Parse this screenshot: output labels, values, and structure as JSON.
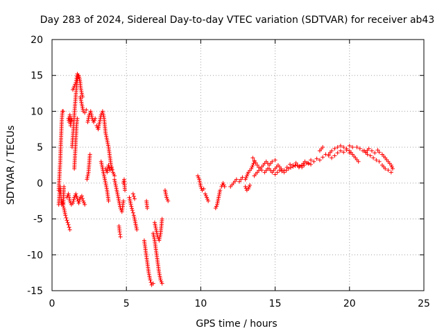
{
  "chart_data": {
    "type": "scatter",
    "title": "Day 283 of 2024, Sidereal Day-to-day VTEC variation (SDTVAR) for receiver ab43",
    "xlabel": "GPS time / hours",
    "ylabel": "SDTVAR / TECUs",
    "xlim": [
      0,
      25
    ],
    "ylim": [
      -15,
      20
    ],
    "xticks": [
      0,
      5,
      10,
      15,
      20,
      25
    ],
    "yticks": [
      -15,
      -10,
      -5,
      0,
      5,
      10,
      15,
      20
    ],
    "grid": true,
    "marker": "plus",
    "color": "#ff0000",
    "series": [
      {
        "name": "SDTVAR",
        "segments": [
          {
            "x": [
              0.45,
              0.55,
              0.6,
              0.65,
              0.7,
              0.75
            ],
            "y": [
              -1,
              3,
              6,
              8.5,
              10,
              10
            ]
          },
          {
            "x": [
              0.45,
              0.5,
              0.55,
              0.6,
              0.65,
              0.7,
              0.75,
              0.8
            ],
            "y": [
              -3,
              -1.5,
              -0.5,
              -2,
              -3,
              -2.5,
              -3.2,
              -0.5
            ]
          },
          {
            "x": [
              0.8,
              0.9,
              1.0,
              1.1,
              1.2
            ],
            "y": [
              -3.5,
              -4.5,
              -5.2,
              -5.8,
              -6.5
            ]
          },
          {
            "x": [
              1.0,
              1.1,
              1.2,
              1.3,
              1.4,
              1.5
            ],
            "y": [
              -2,
              -1.5,
              -2.5,
              -3,
              -2.8,
              -2
            ]
          },
          {
            "x": [
              1.1,
              1.15,
              1.2,
              1.25,
              1.3,
              1.35
            ],
            "y": [
              9,
              8.5,
              9.5,
              8,
              9,
              8.7
            ]
          },
          {
            "x": [
              1.35,
              1.45,
              1.55,
              1.65,
              1.75,
              1.85,
              1.95,
              2.05
            ],
            "y": [
              5,
              8,
              11,
              13.5,
              15,
              14.5,
              13,
              12
            ]
          },
          {
            "x": [
              1.4,
              1.5,
              1.6,
              1.7,
              1.8,
              1.9
            ],
            "y": [
              13,
              13.5,
              14,
              15.2,
              15,
              14
            ]
          },
          {
            "x": [
              1.5,
              1.55,
              1.6,
              1.65,
              1.7
            ],
            "y": [
              2,
              4,
              6,
              8,
              9
            ]
          },
          {
            "x": [
              1.5,
              1.6,
              1.7,
              1.8,
              1.9,
              2.0,
              2.1,
              2.2
            ],
            "y": [
              -2,
              -1.5,
              -2.2,
              -2.8,
              -2,
              -1.8,
              -2.5,
              -3
            ]
          },
          {
            "x": [
              1.9,
              2.0,
              2.1,
              2.2,
              2.3
            ],
            "y": [
              12,
              11,
              10,
              9.8,
              10.2
            ]
          },
          {
            "x": [
              2.4,
              2.5,
              2.6,
              2.7,
              2.8,
              2.9
            ],
            "y": [
              8.5,
              9.5,
              10,
              9,
              8.5,
              9
            ]
          },
          {
            "x": [
              2.35,
              2.45,
              2.55
            ],
            "y": [
              0.5,
              1.5,
              4
            ]
          },
          {
            "x": [
              3.0,
              3.1,
              3.2,
              3.3,
              3.4,
              3.5,
              3.6,
              3.7,
              3.8,
              3.9,
              4.0
            ],
            "y": [
              8,
              7.5,
              8.5,
              9.5,
              10,
              9,
              7,
              6,
              5,
              3.5,
              2
            ]
          },
          {
            "x": [
              3.3,
              3.4,
              3.5,
              3.6,
              3.7,
              3.8
            ],
            "y": [
              3,
              2,
              1,
              0,
              -1,
              -2.5
            ]
          },
          {
            "x": [
              3.6,
              3.7,
              3.8,
              3.9,
              4.0,
              4.1,
              4.2
            ],
            "y": [
              2,
              1.5,
              2.5,
              1.8,
              2.2,
              1.5,
              1
            ]
          },
          {
            "x": [
              4.2,
              4.3,
              4.4,
              4.5,
              4.6,
              4.7,
              4.8
            ],
            "y": [
              0.5,
              -0.5,
              -1.5,
              -2.5,
              -3.5,
              -4,
              -2.5
            ]
          },
          {
            "x": [
              4.5,
              4.55,
              4.6
            ],
            "y": [
              -6,
              -6.8,
              -7.5
            ]
          },
          {
            "x": [
              4.8,
              4.85,
              4.9
            ],
            "y": [
              0,
              0.5,
              -1
            ]
          },
          {
            "x": [
              5.2,
              5.3,
              5.4,
              5.5,
              5.6,
              5.7
            ],
            "y": [
              -2,
              -3,
              -3.8,
              -4.5,
              -5.5,
              -6.5
            ]
          },
          {
            "x": [
              5.45,
              5.55
            ],
            "y": [
              -1.5,
              -2.2
            ]
          },
          {
            "x": [
              6.2,
              6.3,
              6.4,
              6.5,
              6.6,
              6.7,
              6.8
            ],
            "y": [
              -8,
              -9.5,
              -11,
              -12.5,
              -13.5,
              -14.2,
              -14
            ]
          },
          {
            "x": [
              6.35,
              6.4
            ],
            "y": [
              -2.5,
              -3.5
            ]
          },
          {
            "x": [
              6.8,
              6.9,
              7.0,
              7.1,
              7.2,
              7.3,
              7.4
            ],
            "y": [
              -7,
              -8,
              -9.5,
              -11,
              -12.5,
              -13.5,
              -14
            ]
          },
          {
            "x": [
              6.9,
              7.0,
              7.1,
              7.2,
              7.3,
              7.4
            ],
            "y": [
              -5.5,
              -6.5,
              -7.5,
              -8,
              -7,
              -5
            ]
          },
          {
            "x": [
              7.6,
              7.7,
              7.8
            ],
            "y": [
              -1,
              -2,
              -2.5
            ]
          },
          {
            "x": [
              9.8,
              9.9,
              10.0,
              10.1,
              10.2
            ],
            "y": [
              1,
              0.5,
              -0.5,
              -1,
              -0.8
            ]
          },
          {
            "x": [
              10.3,
              10.4,
              10.5
            ],
            "y": [
              -1.5,
              -2,
              -2.5
            ]
          },
          {
            "x": [
              11.0,
              11.1,
              11.2,
              11.3
            ],
            "y": [
              -3.5,
              -3,
              -2,
              -1
            ]
          },
          {
            "x": [
              11.4,
              11.5,
              11.6
            ],
            "y": [
              -0.5,
              0,
              -0.5
            ]
          },
          {
            "x": [
              12.0,
              12.2,
              12.4,
              12.6,
              12.8,
              13.0,
              13.2,
              13.4,
              13.6
            ],
            "y": [
              -0.5,
              0,
              0.5,
              0.2,
              0.8,
              0.5,
              1.5,
              2,
              3
            ]
          },
          {
            "x": [
              13.0,
              13.1,
              13.2,
              13.3
            ],
            "y": [
              -0.5,
              -1,
              -0.8,
              -0.3
            ]
          },
          {
            "x": [
              13.6,
              13.8,
              14.0,
              14.2,
              14.4,
              14.6,
              14.8,
              15.0
            ],
            "y": [
              1,
              1.5,
              2,
              2.5,
              3,
              2.5,
              3,
              3.2
            ]
          },
          {
            "x": [
              13.5,
              13.7,
              13.9,
              14.1,
              14.3,
              14.5
            ],
            "y": [
              3.5,
              2.8,
              2.2,
              1.8,
              1.5,
              2
            ]
          },
          {
            "x": [
              14.6,
              14.8,
              15.0,
              15.2,
              15.4,
              15.6,
              15.8,
              16.0,
              16.2,
              16.4,
              16.6,
              16.8
            ],
            "y": [
              2,
              1.5,
              2,
              2.5,
              2,
              1.8,
              2.2,
              2.6,
              2.5,
              2.8,
              2.2,
              2.4
            ]
          },
          {
            "x": [
              15.0,
              15.3,
              15.6,
              15.9,
              16.2,
              16.5,
              16.8,
              17.1,
              17.4
            ],
            "y": [
              1.2,
              1.8,
              1.5,
              2,
              2.3,
              2.5,
              2.2,
              2.8,
              2.6
            ]
          },
          {
            "x": [
              16.8,
              17.0,
              17.2,
              17.4,
              17.6,
              17.8,
              18.0,
              18.2,
              18.4,
              18.6
            ],
            "y": [
              2.5,
              3,
              2.8,
              3.2,
              3,
              3.4,
              3.2,
              3.6,
              4,
              3.8
            ]
          },
          {
            "x": [
              18.0,
              18.2
            ],
            "y": [
              4.5,
              5
            ]
          },
          {
            "x": [
              18.6,
              18.8,
              19.0,
              19.2,
              19.4,
              19.6,
              19.8,
              20.0,
              20.2
            ],
            "y": [
              4,
              4.5,
              4.8,
              5,
              5.2,
              5,
              4.8,
              5.2,
              5
            ]
          },
          {
            "x": [
              18.8,
              19.0,
              19.2,
              19.4,
              19.6,
              19.8,
              20.0
            ],
            "y": [
              3.5,
              3.8,
              4.2,
              4.5,
              4.3,
              4.6,
              4.2
            ]
          },
          {
            "x": [
              20.0,
              20.2,
              20.4,
              20.6
            ],
            "y": [
              4.5,
              4,
              3.5,
              3
            ]
          },
          {
            "x": [
              20.5,
              20.7,
              20.9,
              21.1,
              21.3,
              21.5,
              21.7,
              21.9
            ],
            "y": [
              5,
              4.8,
              4.5,
              4.3,
              4.8,
              4.5,
              4.2,
              4.6
            ]
          },
          {
            "x": [
              21.0,
              21.2,
              21.4,
              21.6,
              21.8,
              22.0
            ],
            "y": [
              4.5,
              4,
              3.8,
              3.5,
              3.2,
              3
            ]
          },
          {
            "x": [
              22.0,
              22.2,
              22.4,
              22.6,
              22.8,
              22.9
            ],
            "y": [
              4.3,
              4,
              3.5,
              3,
              2.5,
              2
            ]
          },
          {
            "x": [
              22.2,
              22.4,
              22.6,
              22.8
            ],
            "y": [
              2.5,
              2,
              1.8,
              1.5
            ]
          }
        ]
      }
    ]
  }
}
